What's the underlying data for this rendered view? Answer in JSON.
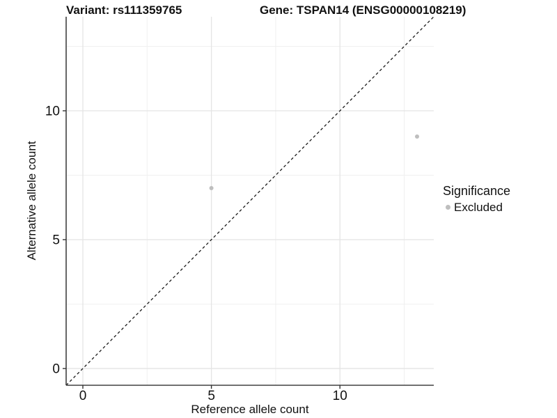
{
  "header": {
    "title_left": "Variant: rs111359765",
    "title_right": "Gene: TSPAN14 (ENSG00000108219)"
  },
  "axes": {
    "x_label": "Reference allele count",
    "y_label": "Alternative allele count"
  },
  "legend": {
    "title": "Significance",
    "items": [
      {
        "label": "Excluded",
        "color": "#bebebe"
      }
    ]
  },
  "colors": {
    "point_gray": "#bebebe",
    "axis_text": "#111111",
    "background": "#ffffff"
  },
  "chart_data": {
    "type": "scatter",
    "title": "Variant: rs111359765 — Gene: TSPAN14 (ENSG00000108219)",
    "xlabel": "Reference allele count",
    "ylabel": "Alternative allele count",
    "xlim": [
      -0.65,
      13.65
    ],
    "ylim": [
      -0.65,
      13.65
    ],
    "x_ticks": [
      0,
      5,
      10
    ],
    "y_ticks": [
      0,
      5,
      10
    ],
    "x_minor": [
      2.5,
      7.5,
      12.5
    ],
    "y_minor": [
      2.5,
      7.5,
      12.5
    ],
    "grid": "major+minor",
    "legend_position": "right",
    "reference_line": {
      "type": "identity y=x",
      "style": "dashed",
      "color": "#1a1a1a"
    },
    "series": [
      {
        "name": "Excluded",
        "color": "#bebebe",
        "points": [
          [
            5,
            7
          ],
          [
            13,
            9
          ]
        ]
      }
    ]
  }
}
